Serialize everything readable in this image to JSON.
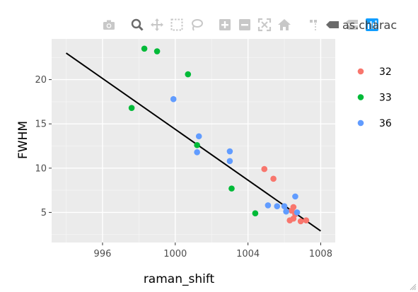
{
  "chart_data": {
    "type": "scatter",
    "title": "",
    "xlabel": "raman_shift",
    "ylabel": "FWHM",
    "xlim": [
      993.2,
      1008.8
    ],
    "ylim": [
      1.6,
      24.6
    ],
    "xticks": [
      996,
      1000,
      1004,
      1008
    ],
    "yticks": [
      5,
      10,
      15,
      20
    ],
    "xtick_labels": [
      "996",
      "1000",
      "1004",
      "1008"
    ],
    "ytick_labels": [
      "5",
      "10",
      "15",
      "20"
    ],
    "legend_position": "right",
    "series": [
      {
        "name": "32",
        "color": "#F8766D",
        "points": [
          {
            "x": 1004.9,
            "y": 9.9
          },
          {
            "x": 1005.4,
            "y": 8.8
          },
          {
            "x": 1006.3,
            "y": 4.1
          },
          {
            "x": 1006.4,
            "y": 5.2
          },
          {
            "x": 1006.5,
            "y": 5.6
          },
          {
            "x": 1006.6,
            "y": 4.8
          },
          {
            "x": 1006.5,
            "y": 4.3
          },
          {
            "x": 1006.9,
            "y": 4.0
          },
          {
            "x": 1007.2,
            "y": 4.1
          }
        ]
      },
      {
        "name": "33",
        "color": "#00BA38",
        "points": [
          {
            "x": 997.6,
            "y": 16.8
          },
          {
            "x": 998.3,
            "y": 23.5
          },
          {
            "x": 999.0,
            "y": 23.2
          },
          {
            "x": 1000.7,
            "y": 20.6
          },
          {
            "x": 1001.2,
            "y": 12.6
          },
          {
            "x": 1003.1,
            "y": 7.7
          },
          {
            "x": 1004.4,
            "y": 4.9
          }
        ]
      },
      {
        "name": "36",
        "color": "#619CFF",
        "points": [
          {
            "x": 999.9,
            "y": 17.8
          },
          {
            "x": 1001.3,
            "y": 13.6
          },
          {
            "x": 1001.2,
            "y": 11.8
          },
          {
            "x": 1003.0,
            "y": 11.9
          },
          {
            "x": 1003.0,
            "y": 10.8
          },
          {
            "x": 1005.1,
            "y": 5.8
          },
          {
            "x": 1005.6,
            "y": 5.7
          },
          {
            "x": 1006.0,
            "y": 5.7
          },
          {
            "x": 1006.1,
            "y": 5.1
          },
          {
            "x": 1006.6,
            "y": 6.8
          },
          {
            "x": 1006.7,
            "y": 5.0
          }
        ]
      }
    ],
    "trend_line": {
      "x": [
        994.0,
        1008.0
      ],
      "y": [
        23.0,
        2.9
      ],
      "color": "#000000"
    }
  },
  "modebar": {
    "icons": [
      "camera-icon",
      "zoom-icon",
      "pan-icon",
      "box-select-icon",
      "lasso-select-icon",
      "zoom-in-icon",
      "zoom-out-icon",
      "autoscale-icon",
      "reset-axes-icon",
      "spike-lines-icon",
      "hover-closest-icon",
      "hover-compare-icon",
      "plotly-logo-icon"
    ],
    "overflow_text": "as.charac"
  }
}
